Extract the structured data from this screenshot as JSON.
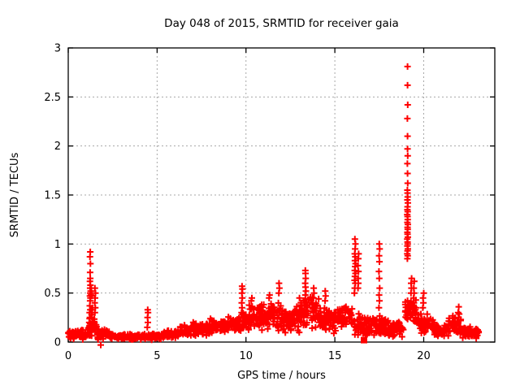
{
  "chart_data": {
    "type": "scatter",
    "title": "Day 048 of 2015, SRMTID for receiver gaia",
    "xlabel": "GPS time / hours",
    "ylabel": "SRMTID / TECUs",
    "xlim": [
      0,
      24
    ],
    "ylim": [
      0,
      3
    ],
    "xticks": [
      0,
      5,
      10,
      15,
      20
    ],
    "yticks": [
      0,
      0.5,
      1,
      1.5,
      2,
      2.5,
      3
    ],
    "grid": true,
    "legend": "none",
    "marker": {
      "shape": "plus",
      "color": "#ff0000",
      "size": 8,
      "stroke_width": 2
    },
    "square_marker": {
      "shape": "filled-square",
      "color": "#ff0000",
      "size": 8
    },
    "square_points": [
      [
        16.64,
        0.02
      ]
    ],
    "colors": {
      "frame": "#000000",
      "grid": "#a8a8a8",
      "text": "#000000",
      "background": "#ffffff"
    },
    "seed": 42,
    "noise_bands": [
      [
        0.0,
        1.1,
        0.02,
        0.13,
        70
      ],
      [
        1.1,
        1.6,
        0.05,
        0.25,
        35
      ],
      [
        1.6,
        2.3,
        0.02,
        0.14,
        45
      ],
      [
        2.3,
        5.4,
        0.02,
        0.09,
        170
      ],
      [
        5.4,
        6.2,
        0.03,
        0.12,
        48
      ],
      [
        6.2,
        7.0,
        0.05,
        0.18,
        48
      ],
      [
        7.0,
        8.0,
        0.06,
        0.22,
        60
      ],
      [
        8.0,
        9.0,
        0.08,
        0.26,
        60
      ],
      [
        9.0,
        9.7,
        0.1,
        0.28,
        45
      ],
      [
        9.7,
        10.7,
        0.1,
        0.38,
        65
      ],
      [
        10.7,
        12.0,
        0.1,
        0.42,
        85
      ],
      [
        12.0,
        13.0,
        0.08,
        0.38,
        65
      ],
      [
        13.0,
        14.2,
        0.12,
        0.5,
        80
      ],
      [
        14.2,
        15.1,
        0.08,
        0.35,
        58
      ],
      [
        15.1,
        16.0,
        0.1,
        0.38,
        58
      ],
      [
        16.0,
        17.0,
        0.05,
        0.3,
        60
      ],
      [
        17.0,
        18.0,
        0.05,
        0.28,
        60
      ],
      [
        18.0,
        18.9,
        0.04,
        0.22,
        55
      ],
      [
        18.9,
        19.6,
        0.15,
        0.45,
        45
      ],
      [
        19.6,
        20.6,
        0.08,
        0.3,
        62
      ],
      [
        20.6,
        21.4,
        0.04,
        0.18,
        48
      ],
      [
        21.4,
        22.1,
        0.06,
        0.3,
        42
      ],
      [
        22.1,
        23.1,
        0.03,
        0.16,
        62
      ]
    ],
    "points": [
      [
        1.18,
        0.2
      ],
      [
        1.22,
        0.25
      ],
      [
        1.2,
        0.3
      ],
      [
        1.24,
        0.33
      ],
      [
        1.21,
        0.37
      ],
      [
        1.23,
        0.42
      ],
      [
        1.25,
        0.45
      ],
      [
        1.22,
        0.47
      ],
      [
        1.24,
        0.5
      ],
      [
        1.26,
        0.52
      ],
      [
        1.23,
        0.55
      ],
      [
        1.25,
        0.58
      ],
      [
        1.22,
        0.62
      ],
      [
        1.24,
        0.65
      ],
      [
        1.23,
        0.71
      ],
      [
        1.25,
        0.8
      ],
      [
        1.22,
        0.87
      ],
      [
        1.24,
        0.92
      ],
      [
        1.28,
        0.48
      ],
      [
        1.3,
        0.52
      ],
      [
        1.32,
        0.5
      ],
      [
        1.3,
        0.55
      ],
      [
        1.33,
        0.47
      ],
      [
        1.35,
        0.3
      ],
      [
        1.33,
        0.33
      ],
      [
        1.36,
        0.35
      ],
      [
        1.31,
        0.28
      ],
      [
        1.34,
        0.25
      ],
      [
        1.5,
        0.3
      ],
      [
        1.52,
        0.35
      ],
      [
        1.49,
        0.4
      ],
      [
        1.51,
        0.45
      ],
      [
        1.53,
        0.5
      ],
      [
        1.5,
        0.55
      ],
      [
        1.83,
        -0.03
      ],
      [
        4.45,
        0.15
      ],
      [
        4.48,
        0.2
      ],
      [
        4.46,
        0.25
      ],
      [
        4.49,
        0.3
      ],
      [
        4.47,
        0.33
      ],
      [
        9.75,
        0.3
      ],
      [
        9.78,
        0.35
      ],
      [
        9.76,
        0.4
      ],
      [
        9.79,
        0.45
      ],
      [
        9.77,
        0.5
      ],
      [
        9.8,
        0.54
      ],
      [
        9.78,
        0.57
      ],
      [
        10.3,
        0.42
      ],
      [
        10.33,
        0.45
      ],
      [
        11.3,
        0.45
      ],
      [
        11.33,
        0.48
      ],
      [
        11.85,
        0.5
      ],
      [
        11.88,
        0.55
      ],
      [
        11.86,
        0.6
      ],
      [
        13.33,
        0.4
      ],
      [
        13.36,
        0.44
      ],
      [
        13.34,
        0.48
      ],
      [
        13.37,
        0.52
      ],
      [
        13.35,
        0.56
      ],
      [
        13.33,
        0.6
      ],
      [
        13.36,
        0.65
      ],
      [
        13.35,
        0.7
      ],
      [
        13.34,
        0.73
      ],
      [
        13.8,
        0.45
      ],
      [
        13.83,
        0.5
      ],
      [
        13.81,
        0.55
      ],
      [
        14.45,
        0.42
      ],
      [
        14.48,
        0.47
      ],
      [
        14.46,
        0.52
      ],
      [
        16.1,
        0.5
      ],
      [
        16.12,
        0.55
      ],
      [
        16.15,
        0.6
      ],
      [
        16.11,
        0.63
      ],
      [
        16.13,
        0.67
      ],
      [
        16.16,
        0.7
      ],
      [
        16.12,
        0.73
      ],
      [
        16.14,
        0.77
      ],
      [
        16.17,
        0.8
      ],
      [
        16.13,
        0.83
      ],
      [
        16.15,
        0.87
      ],
      [
        16.12,
        0.9
      ],
      [
        16.14,
        0.95
      ],
      [
        16.16,
        1.0
      ],
      [
        16.13,
        1.05
      ],
      [
        16.3,
        0.55
      ],
      [
        16.32,
        0.6
      ],
      [
        16.31,
        0.65
      ],
      [
        16.33,
        0.72
      ],
      [
        16.3,
        0.78
      ],
      [
        16.32,
        0.85
      ],
      [
        16.34,
        0.9
      ],
      [
        17.48,
        0.35
      ],
      [
        17.51,
        0.42
      ],
      [
        17.49,
        0.48
      ],
      [
        17.52,
        0.55
      ],
      [
        17.5,
        0.65
      ],
      [
        17.48,
        0.72
      ],
      [
        17.51,
        0.82
      ],
      [
        17.49,
        0.88
      ],
      [
        17.52,
        0.95
      ],
      [
        17.5,
        1.0
      ],
      [
        19.08,
        0.85
      ],
      [
        19.1,
        0.88
      ],
      [
        19.07,
        0.9
      ],
      [
        19.09,
        0.93
      ],
      [
        19.11,
        0.95
      ],
      [
        19.08,
        0.98
      ],
      [
        19.1,
        1.0
      ],
      [
        19.09,
        1.02
      ],
      [
        19.07,
        1.05
      ],
      [
        19.11,
        1.07
      ],
      [
        19.09,
        1.1
      ],
      [
        19.08,
        1.12
      ],
      [
        19.1,
        1.15
      ],
      [
        19.09,
        1.17
      ],
      [
        19.11,
        1.2
      ],
      [
        19.08,
        1.22
      ],
      [
        19.1,
        1.25
      ],
      [
        19.09,
        1.28
      ],
      [
        19.07,
        1.3
      ],
      [
        19.1,
        1.33
      ],
      [
        19.08,
        1.35
      ],
      [
        19.09,
        1.38
      ],
      [
        19.11,
        1.42
      ],
      [
        19.08,
        1.45
      ],
      [
        19.1,
        1.48
      ],
      [
        19.09,
        1.52
      ],
      [
        19.08,
        1.55
      ],
      [
        19.1,
        1.62
      ],
      [
        19.09,
        1.72
      ],
      [
        19.08,
        1.82
      ],
      [
        19.1,
        1.9
      ],
      [
        19.09,
        1.97
      ],
      [
        19.09,
        2.1
      ],
      [
        19.08,
        2.28
      ],
      [
        19.1,
        2.42
      ],
      [
        19.09,
        2.62
      ],
      [
        19.09,
        2.81
      ],
      [
        19.28,
        0.5
      ],
      [
        19.31,
        0.55
      ],
      [
        19.29,
        0.6
      ],
      [
        19.32,
        0.65
      ],
      [
        19.42,
        0.35
      ],
      [
        19.45,
        0.4
      ],
      [
        19.43,
        0.45
      ],
      [
        19.46,
        0.5
      ],
      [
        19.44,
        0.55
      ],
      [
        19.47,
        0.62
      ],
      [
        19.95,
        0.35
      ],
      [
        19.98,
        0.4
      ],
      [
        19.96,
        0.45
      ],
      [
        20.0,
        0.5
      ],
      [
        21.93,
        0.2
      ],
      [
        21.96,
        0.25
      ],
      [
        21.94,
        0.3
      ],
      [
        21.97,
        0.36
      ]
    ]
  }
}
